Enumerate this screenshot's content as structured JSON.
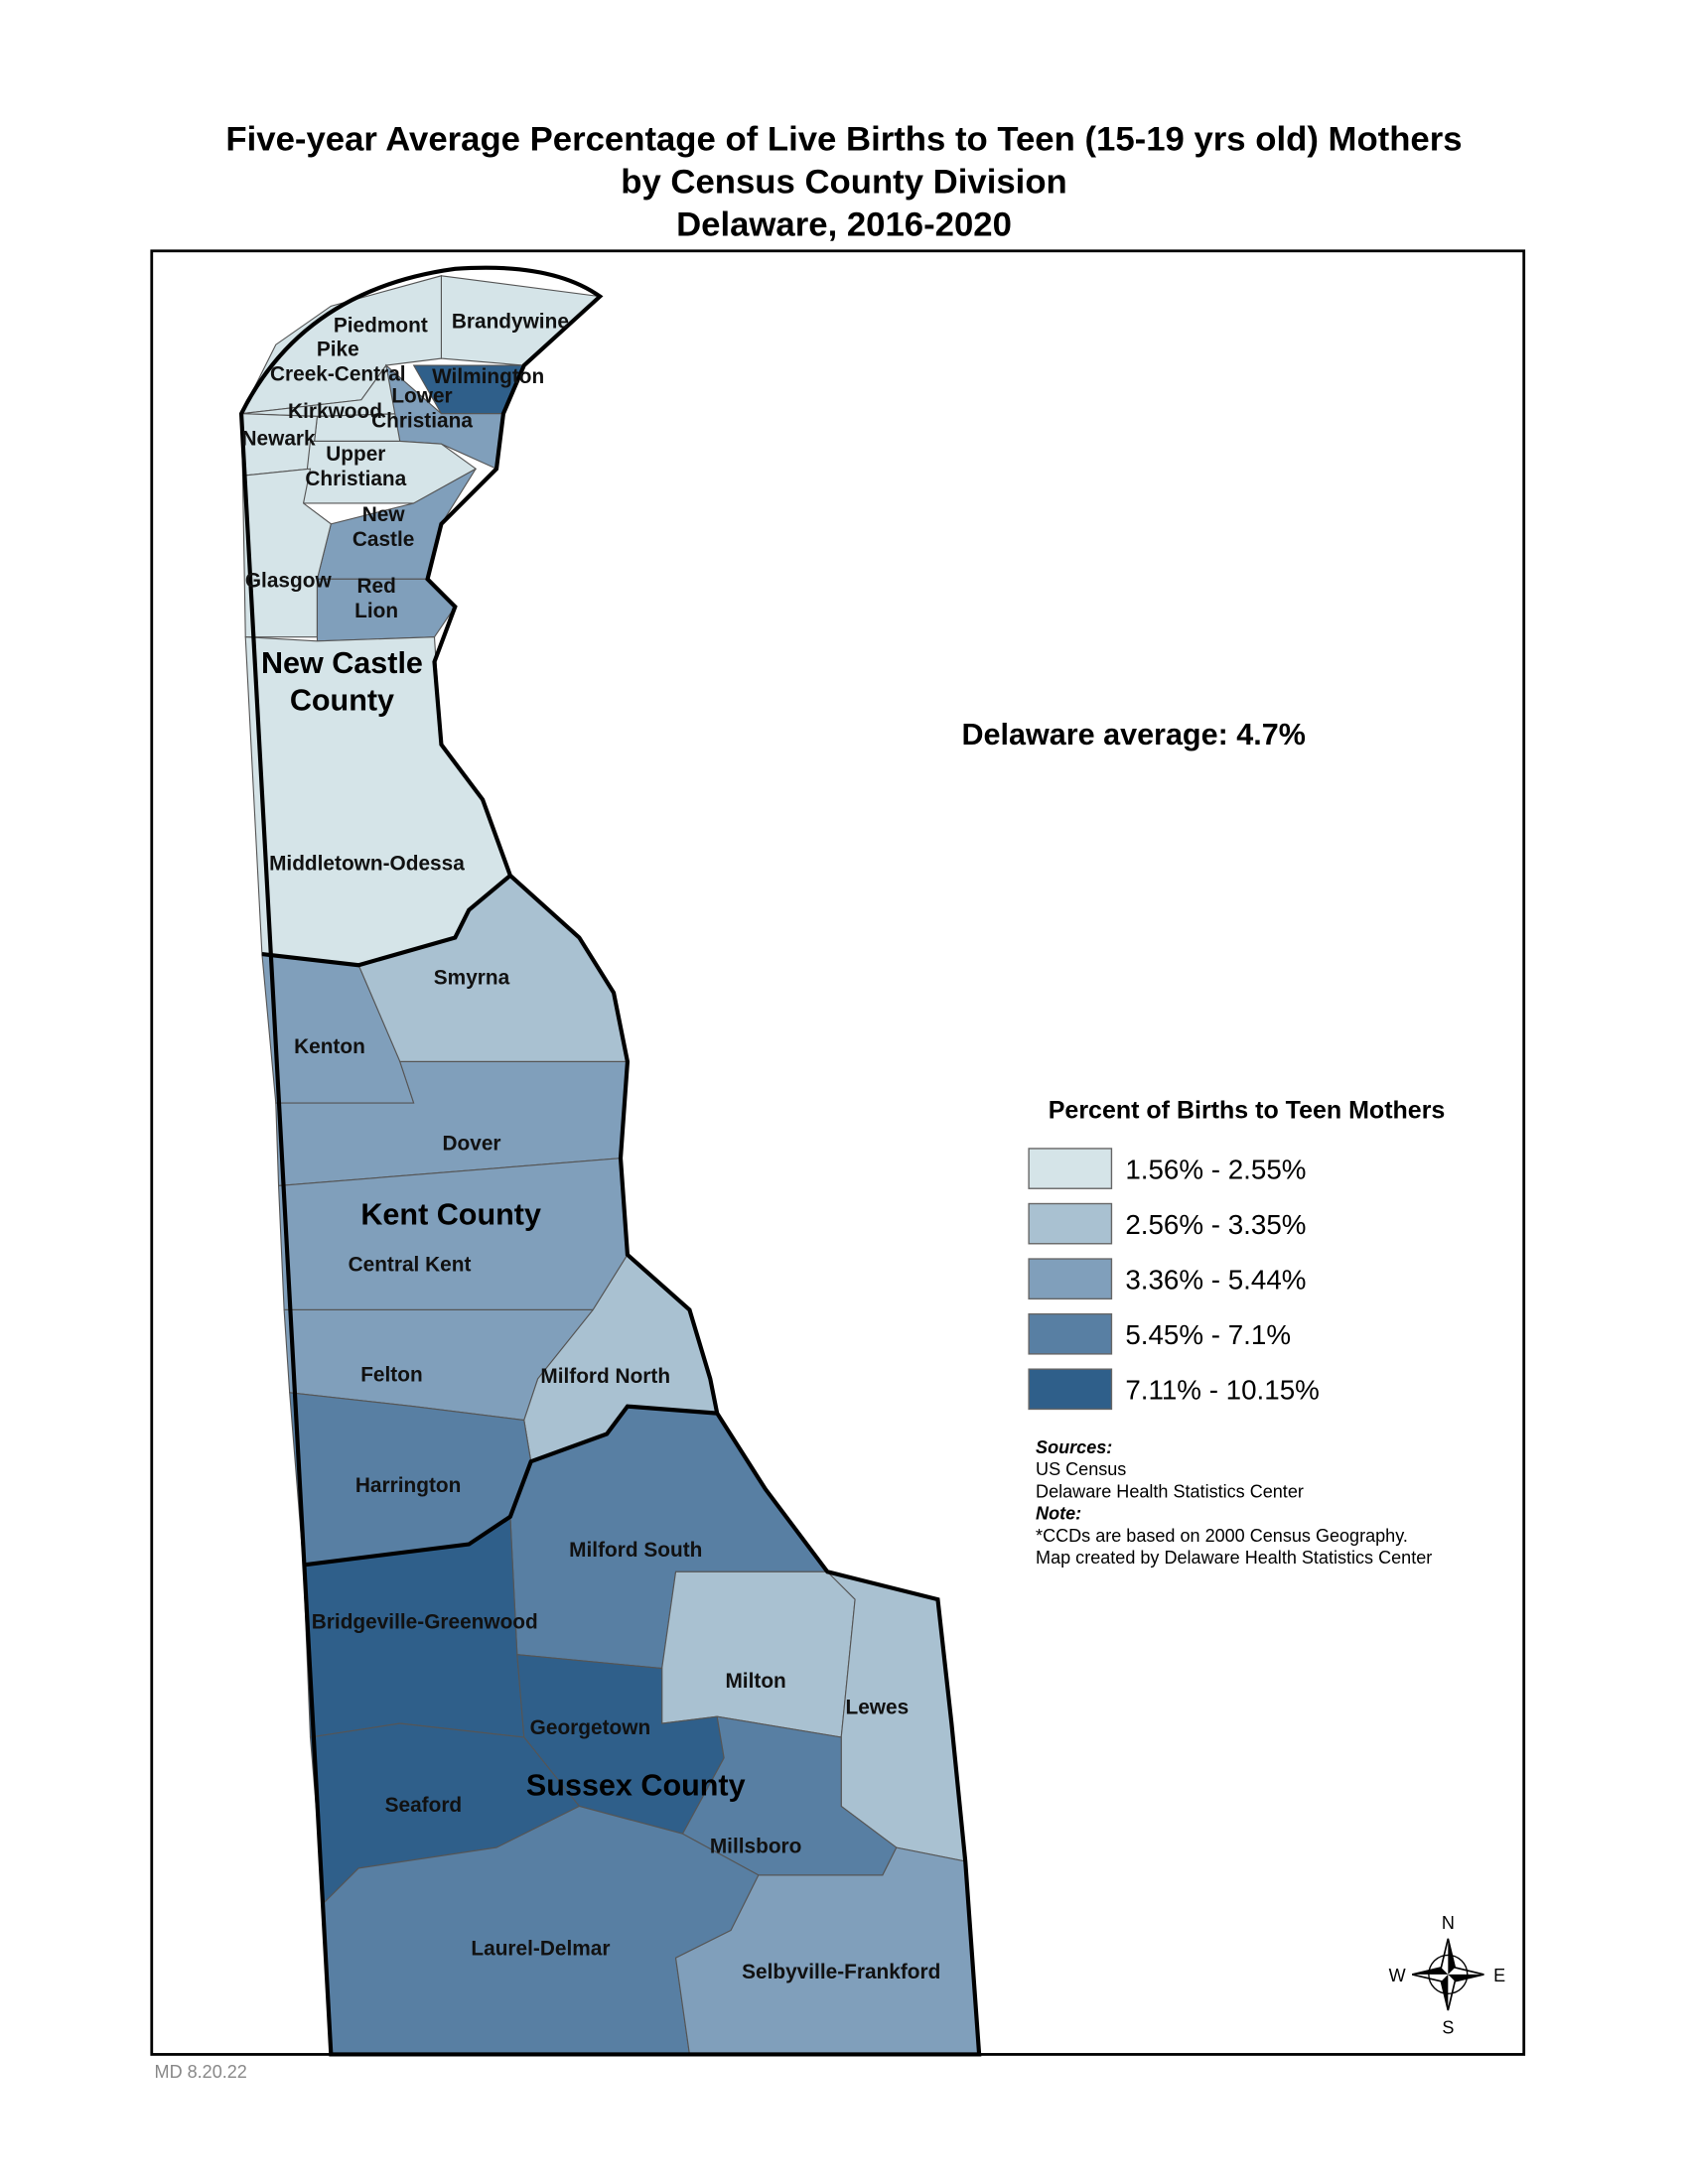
{
  "title": [
    "Five-year Average Percentage of Live Births to Teen (15-19 yrs old) Mothers",
    "by Census County Division",
    "Delaware, 2016-2020"
  ],
  "annotation": "Delaware average: 4.7%",
  "legend": {
    "title": "Percent of Births to Teen Mothers",
    "classes": [
      {
        "label": "1.56% - 2.55%",
        "color": "#d5e4e8"
      },
      {
        "label": "2.56% - 3.35%",
        "color": "#a9c1d1"
      },
      {
        "label": "3.36% - 5.44%",
        "color": "#809fbb"
      },
      {
        "label": "5.45% - 7.1%",
        "color": "#587fa3"
      },
      {
        "label": "7.11% - 10.15%",
        "color": "#2f5f8a"
      }
    ]
  },
  "regions": [
    {
      "label": [
        "Brandywine"
      ],
      "class": "1.56% - 2.55%"
    },
    {
      "label": [
        "Piedmont"
      ],
      "class": "1.56% - 2.55%"
    },
    {
      "label": [
        "Wilmington"
      ],
      "class": "7.11% - 10.15%"
    },
    {
      "label": [
        "Pike",
        "Creek-Central"
      ],
      "class": "1.56% - 2.55%"
    },
    {
      "label": [
        "Kirkwood"
      ],
      "class": "1.56% - 2.55%"
    },
    {
      "label": [
        "Lower",
        "Christiana"
      ],
      "class": "3.36% - 5.44%"
    },
    {
      "label": [
        "Newark"
      ],
      "class": "1.56% - 2.55%"
    },
    {
      "label": [
        "Upper",
        "Christiana"
      ],
      "class": "1.56% - 2.55%"
    },
    {
      "label": [
        "New",
        "Castle"
      ],
      "class": "3.36% - 5.44%"
    },
    {
      "label": [
        "Glasgow"
      ],
      "class": "1.56% - 2.55%"
    },
    {
      "label": [
        "Red",
        "Lion"
      ],
      "class": "3.36% - 5.44%"
    },
    {
      "label": [
        "Middletown-Odessa"
      ],
      "class": "1.56% - 2.55%"
    },
    {
      "label": [
        "Smyrna"
      ],
      "class": "2.56% - 3.35%"
    },
    {
      "label": [
        "Kenton"
      ],
      "class": "3.36% - 5.44%"
    },
    {
      "label": [
        "Dover"
      ],
      "class": "3.36% - 5.44%"
    },
    {
      "label": [
        "Central Kent"
      ],
      "class": "3.36% - 5.44%"
    },
    {
      "label": [
        "Felton"
      ],
      "class": "3.36% - 5.44%"
    },
    {
      "label": [
        "Milford North"
      ],
      "class": "2.56% - 3.35%"
    },
    {
      "label": [
        "Harrington"
      ],
      "class": "5.45% - 7.1%"
    },
    {
      "label": [
        "Milford South"
      ],
      "class": "5.45% - 7.1%"
    },
    {
      "label": [
        "Bridgeville-Greenwood"
      ],
      "class": "7.11% - 10.15%"
    },
    {
      "label": [
        "Milton"
      ],
      "class": "2.56% - 3.35%"
    },
    {
      "label": [
        "Lewes"
      ],
      "class": "2.56% - 3.35%"
    },
    {
      "label": [
        "Georgetown"
      ],
      "class": "7.11% - 10.15%"
    },
    {
      "label": [
        "Seaford"
      ],
      "class": "7.11% - 10.15%"
    },
    {
      "label": [
        "Millsboro"
      ],
      "class": "5.45% - 7.1%"
    },
    {
      "label": [
        "Laurel-Delmar"
      ],
      "class": "5.45% - 7.1%"
    },
    {
      "label": [
        "Selbyville-Frankford"
      ],
      "class": "3.36% - 5.44%"
    }
  ],
  "counties": [
    [
      "New Castle",
      "County"
    ],
    [
      "Kent County"
    ],
    [
      "Sussex County"
    ]
  ],
  "sources_heading": "Sources:",
  "sources": [
    "US Census",
    "Delaware Health Statistics Center"
  ],
  "note_heading": "Note:",
  "notes": [
    "*CCDs are based on 2000 Census Geography.",
    "Map created by Delaware Health Statistics Center"
  ],
  "compass": {
    "n": "N",
    "e": "E",
    "s": "S",
    "w": "W"
  },
  "footer": "MD 8.20.22"
}
